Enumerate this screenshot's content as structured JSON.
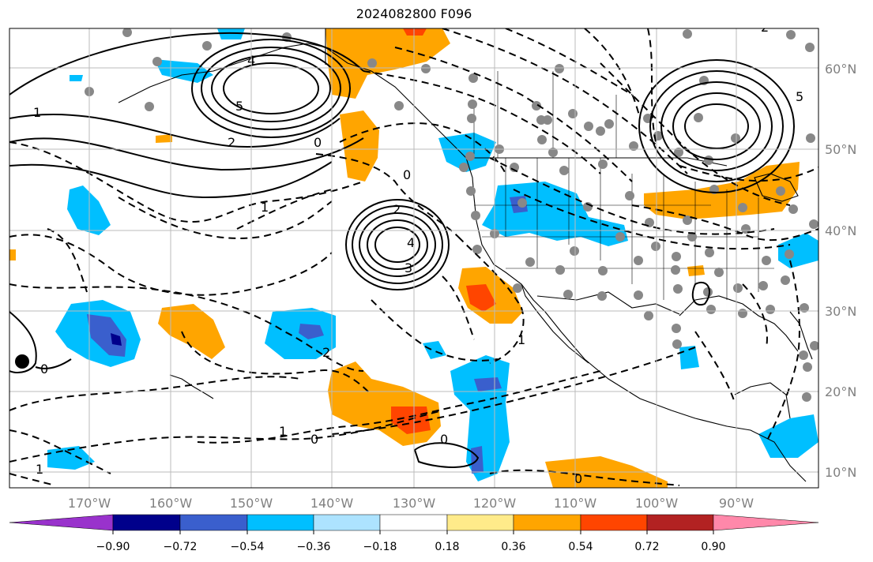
{
  "title": "2024082800 F096",
  "lat_labels": [
    "60°N",
    "50°N",
    "40°N",
    "30°N",
    "20°N",
    "10°N"
  ],
  "lon_labels": [
    "170°W",
    "160°W",
    "150°W",
    "140°W",
    "130°W",
    "120°W",
    "110°W",
    "100°W",
    "90°W"
  ],
  "colorbar": {
    "ticks": [
      "−0.90",
      "−0.72",
      "−0.54",
      "−0.36",
      "−0.18",
      "0.18",
      "0.36",
      "0.54",
      "0.72",
      "0.90"
    ],
    "colors": [
      "#9932CC",
      "#00008B",
      "#3A5FCD",
      "#00BFFF",
      "#ADE3FF",
      "#FFFFFF",
      "#FFEB8A",
      "#FFA500",
      "#FF4500",
      "#B22222",
      "#FF88AA"
    ]
  },
  "contour_labels": [
    "5",
    "4",
    "2",
    "1",
    "0",
    "2",
    "1",
    "3",
    "4",
    "5",
    "0",
    "2",
    "1",
    "0",
    "0",
    "1",
    "0",
    "1",
    "2",
    "0"
  ],
  "colors": {
    "shading_blue": "#00BFFF",
    "shading_dark_blue": "#3A5FCD",
    "shading_orange": "#FFA500",
    "shading_red": "#FF4500",
    "station_dot": "#888888",
    "grid": "#bbbbbb"
  }
}
